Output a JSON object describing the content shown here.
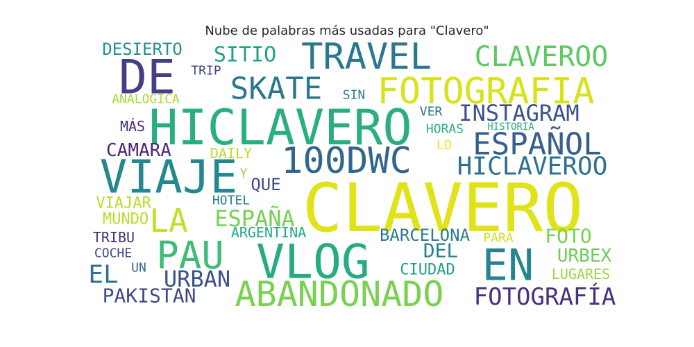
{
  "chart_data": {
    "type": "wordcloud",
    "title": "Nube de palabras más usadas para \"Clavero\"",
    "words": [
      {
        "text": "CLAVERO",
        "color": "#dfe318"
      },
      {
        "text": "HICLAVERO",
        "color": "#2aae80"
      },
      {
        "text": "VIAJE",
        "color": "#23898e"
      },
      {
        "text": "DE",
        "color": "#433e85"
      },
      {
        "text": "VLOG",
        "color": "#25ac82"
      },
      {
        "text": "TRAVEL",
        "color": "#2a788e"
      },
      {
        "text": "FOTOGRAFIA",
        "color": "#d8e219"
      },
      {
        "text": "PAU",
        "color": "#3dbc74"
      },
      {
        "text": "EN",
        "color": "#25848e"
      },
      {
        "text": "100DWC",
        "color": "#31668e"
      },
      {
        "text": "ABANDONADO",
        "color": "#7ad151"
      },
      {
        "text": "CLAVEROO",
        "color": "#5ec962"
      },
      {
        "text": "SKATE",
        "color": "#2a788e"
      },
      {
        "text": "INSTAGRAM",
        "color": "#3b528b"
      },
      {
        "text": "ESPAÑOL",
        "color": "#355f8d"
      },
      {
        "text": "HICLAVEROO",
        "color": "#2c728e"
      },
      {
        "text": "LA",
        "color": "#c2df23"
      },
      {
        "text": "FOTOGRAFÍA",
        "color": "#46327e"
      },
      {
        "text": "SITIO",
        "color": "#1fa187"
      },
      {
        "text": "EL",
        "color": "#2c728e"
      },
      {
        "text": "URBAN",
        "color": "#3b528b"
      },
      {
        "text": "ESPAÑA",
        "color": "#75d054"
      },
      {
        "text": "PAKISTAN",
        "color": "#3e4a89"
      },
      {
        "text": "FOTO",
        "color": "#7ad151"
      },
      {
        "text": "DEL",
        "color": "#26828e"
      },
      {
        "text": "BARCELONA",
        "color": "#287c8e"
      },
      {
        "text": "URBEX",
        "color": "#6ece58"
      },
      {
        "text": "CAMARA",
        "color": "#482878"
      },
      {
        "text": "DESIERTO",
        "color": "#21918c"
      },
      {
        "text": "QUE",
        "color": "#3e4989"
      },
      {
        "text": "CIUDAD",
        "color": "#1f9e89"
      },
      {
        "text": "VIAJAR",
        "color": "#b5de2b"
      },
      {
        "text": "MUNDO",
        "color": "#b5de2b"
      },
      {
        "text": "DAILY",
        "color": "#b8de29"
      },
      {
        "text": "ARGENTINA",
        "color": "#22a884"
      },
      {
        "text": "LUGARES",
        "color": "#95d840"
      },
      {
        "text": "TRIBU",
        "color": "#472d7b"
      },
      {
        "text": "HOTEL",
        "color": "#277f8e"
      },
      {
        "text": "COCHE",
        "color": "#3e4989"
      },
      {
        "text": "MÁS",
        "color": "#482878"
      },
      {
        "text": "VER",
        "color": "#2c728e"
      },
      {
        "text": "SIN",
        "color": "#277f8e"
      },
      {
        "text": "TRIP",
        "color": "#414487"
      },
      {
        "text": "HORAS",
        "color": "#28ae80"
      },
      {
        "text": "ANALOGICA",
        "color": "#a5db36"
      },
      {
        "text": "UN",
        "color": "#31668e"
      },
      {
        "text": "Y",
        "color": "#93d741"
      },
      {
        "text": "PARA",
        "color": "#d0e11c"
      },
      {
        "text": "LO",
        "color": "#f4e61e"
      },
      {
        "text": "HISTORIA",
        "color": "#26ad81"
      }
    ]
  }
}
